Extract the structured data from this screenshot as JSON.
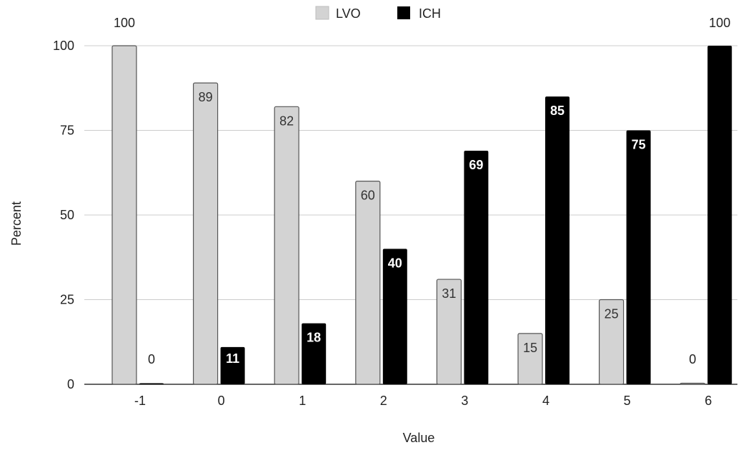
{
  "chart_data": {
    "type": "bar",
    "title": "",
    "xlabel": "Value",
    "ylabel": "Percent",
    "categories": [
      "-1",
      "0",
      "1",
      "2",
      "3",
      "4",
      "5",
      "6"
    ],
    "series": [
      {
        "name": "LVO",
        "values": [
          100,
          89,
          82,
          60,
          31,
          15,
          25,
          0
        ],
        "color": "#d3d3d3"
      },
      {
        "name": "ICH",
        "values": [
          0,
          11,
          18,
          40,
          69,
          85,
          75,
          100
        ],
        "color": "#000000"
      }
    ],
    "ylim": [
      0,
      100
    ],
    "yticks": [
      "0",
      "25",
      "50",
      "75",
      "100"
    ],
    "grid": true,
    "legend_position": "top-center"
  }
}
